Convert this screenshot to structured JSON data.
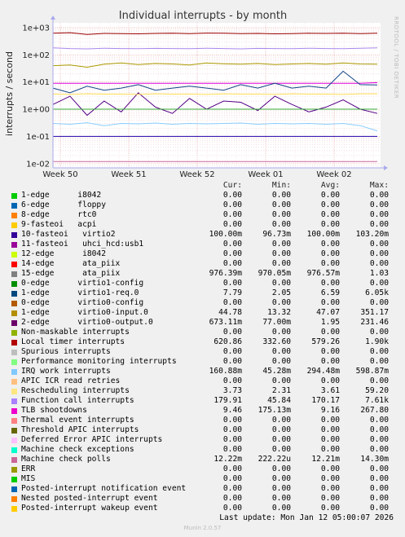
{
  "chart_data": {
    "type": "line",
    "title": "Individual interrupts - by month",
    "ylabel": "interrupts / second",
    "yscale": "log",
    "ylim": [
      0.007,
      1500
    ],
    "y_ticks": [
      "1e+03",
      "1e+02",
      "1e+01",
      "1e+00",
      "1e-01",
      "1e-02"
    ],
    "x_ticks": [
      "Week 50",
      "Week 51",
      "Week 52",
      "Week 01",
      "Week 02"
    ],
    "side_label": "RRDTOOL / TOBI OETIKER",
    "series": [
      {
        "name": "Local timer interrupts",
        "color": "#990000",
        "values": [
          620,
          650,
          560,
          610,
          600,
          590,
          610,
          620,
          600,
          630,
          620,
          600,
          610,
          590,
          600,
          620,
          610,
          620,
          600,
          620
        ]
      },
      {
        "name": "Function call interrupts",
        "color": "#aa88ee",
        "values": [
          180,
          170,
          165,
          175,
          170,
          168,
          172,
          170,
          168,
          175,
          170,
          165,
          172,
          170,
          168,
          175,
          170,
          168,
          175,
          180
        ]
      },
      {
        "name": "TLB shootdowns",
        "color": "#dd00dd",
        "values": [
          9,
          9,
          9,
          9,
          9,
          9,
          9,
          9,
          9,
          9,
          9,
          9,
          9,
          9,
          9,
          9,
          9,
          9,
          9,
          9.5
        ]
      },
      {
        "name": "1-edge virtio0-input.0",
        "color": "#aa9900",
        "values": [
          40,
          42,
          35,
          45,
          50,
          44,
          48,
          46,
          42,
          50,
          47,
          45,
          48,
          44,
          46,
          48,
          45,
          50,
          46,
          45
        ]
      },
      {
        "name": "2-edge virtio0-output.0",
        "color": "#550088",
        "values": [
          1.5,
          3,
          0.6,
          2,
          0.8,
          4,
          1.2,
          0.7,
          2.5,
          1.0,
          2.0,
          1.8,
          0.9,
          3,
          1.5,
          0.8,
          1.2,
          2.2,
          1.0,
          0.7
        ]
      },
      {
        "name": "1-edge virtio1-req.0",
        "color": "#114488",
        "values": [
          6,
          4,
          7,
          5,
          6,
          8,
          5,
          6,
          7,
          6,
          5,
          8,
          6,
          9,
          6,
          7,
          6,
          25,
          8,
          7.8
        ]
      },
      {
        "name": "IRQ work interrupts",
        "color": "#88ccff",
        "values": [
          0.3,
          0.28,
          0.32,
          0.25,
          0.3,
          0.29,
          0.31,
          0.28,
          0.3,
          0.29,
          0.3,
          0.31,
          0.28,
          0.3,
          0.29,
          0.3,
          0.28,
          0.3,
          0.25,
          0.16
        ]
      },
      {
        "name": "Machine check polls",
        "color": "#cc6699",
        "values": [
          0.012,
          0.012,
          0.012,
          0.012,
          0.012,
          0.012,
          0.012,
          0.012,
          0.012,
          0.012,
          0.012,
          0.012,
          0.012,
          0.012,
          0.012,
          0.012,
          0.012,
          0.012,
          0.012,
          0.012
        ]
      },
      {
        "name": "Rescheduling interrupts",
        "color": "#ffdd55",
        "values": [
          3.6,
          3.5,
          3.7,
          3.6,
          3.6,
          3.5,
          3.7,
          3.6,
          3.6,
          3.5,
          3.7,
          3.6,
          3.6,
          3.5,
          3.7,
          3.6,
          3.6,
          3.5,
          3.7,
          3.7
        ]
      },
      {
        "name": "10-fasteoi virtio2",
        "color": "#2200aa",
        "values": [
          0.1,
          0.1,
          0.1,
          0.1,
          0.1,
          0.1,
          0.1,
          0.1,
          0.1,
          0.1,
          0.1,
          0.1,
          0.1,
          0.1,
          0.1,
          0.1,
          0.1,
          0.1,
          0.1,
          0.1
        ]
      },
      {
        "name": "15-edge ata_piix",
        "color": "#33aa33",
        "values": [
          1,
          1,
          1,
          1,
          1,
          1,
          1,
          1,
          1,
          1,
          1,
          1,
          1,
          1,
          1,
          1,
          1,
          1,
          1,
          1
        ]
      }
    ]
  },
  "legend": {
    "headers": {
      "cur": "Cur:",
      "min": "Min:",
      "avg": "Avg:",
      "max": "Max:"
    },
    "rows": [
      {
        "name": "1-edge      i8042",
        "color": "#00cc00",
        "cur": "0.00",
        "min": "0.00",
        "avg": "0.00",
        "max": "0.00"
      },
      {
        "name": "6-edge      floppy",
        "color": "#0066b3",
        "cur": "0.00",
        "min": "0.00",
        "avg": "0.00",
        "max": "0.00"
      },
      {
        "name": "8-edge      rtc0",
        "color": "#ff8000",
        "cur": "0.00",
        "min": "0.00",
        "avg": "0.00",
        "max": "0.00"
      },
      {
        "name": "9-fasteoi   acpi",
        "color": "#ffcc00",
        "cur": "0.00",
        "min": "0.00",
        "avg": "0.00",
        "max": "0.00"
      },
      {
        "name": "10-fasteoi   virtio2",
        "color": "#330099",
        "cur": "100.00m",
        "min": "96.73m",
        "avg": "100.00m",
        "max": "103.20m"
      },
      {
        "name": "11-fasteoi   uhci_hcd:usb1",
        "color": "#990099",
        "cur": "0.00",
        "min": "0.00",
        "avg": "0.00",
        "max": "0.00"
      },
      {
        "name": "12-edge      i8042",
        "color": "#ccff00",
        "cur": "0.00",
        "min": "0.00",
        "avg": "0.00",
        "max": "0.00"
      },
      {
        "name": "14-edge      ata_piix",
        "color": "#ff0000",
        "cur": "0.00",
        "min": "0.00",
        "avg": "0.00",
        "max": "0.00"
      },
      {
        "name": "15-edge      ata_piix",
        "color": "#808080",
        "cur": "976.39m",
        "min": "970.05m",
        "avg": "976.57m",
        "max": "1.03"
      },
      {
        "name": "0-edge      virtio1-config",
        "color": "#008f00",
        "cur": "0.00",
        "min": "0.00",
        "avg": "0.00",
        "max": "0.00"
      },
      {
        "name": "1-edge      virtio1-req.0",
        "color": "#00487d",
        "cur": "7.79",
        "min": "2.05",
        "avg": "6.59",
        "max": "6.05k"
      },
      {
        "name": "0-edge      virtio0-config",
        "color": "#b35a00",
        "cur": "0.00",
        "min": "0.00",
        "avg": "0.00",
        "max": "0.00"
      },
      {
        "name": "1-edge      virtio0-input.0",
        "color": "#b38f00",
        "cur": "44.78",
        "min": "13.32",
        "avg": "47.07",
        "max": "351.17"
      },
      {
        "name": "2-edge      virtio0-output.0",
        "color": "#6b006b",
        "cur": "673.11m",
        "min": "77.00m",
        "avg": "1.95",
        "max": "231.46"
      },
      {
        "name": "Non-maskable interrupts",
        "color": "#8fb300",
        "cur": "0.00",
        "min": "0.00",
        "avg": "0.00",
        "max": "0.00"
      },
      {
        "name": "Local timer interrupts",
        "color": "#b30000",
        "cur": "620.86",
        "min": "332.60",
        "avg": "579.26",
        "max": "1.90k"
      },
      {
        "name": "Spurious interrupts",
        "color": "#bebebe",
        "cur": "0.00",
        "min": "0.00",
        "avg": "0.00",
        "max": "0.00"
      },
      {
        "name": "Performance monitoring interrupts",
        "color": "#80ff80",
        "cur": "0.00",
        "min": "0.00",
        "avg": "0.00",
        "max": "0.00"
      },
      {
        "name": "IRQ work interrupts",
        "color": "#80c9ff",
        "cur": "160.88m",
        "min": "45.28m",
        "avg": "294.48m",
        "max": "598.87m"
      },
      {
        "name": "APIC ICR read retries",
        "color": "#ffc080",
        "cur": "0.00",
        "min": "0.00",
        "avg": "0.00",
        "max": "0.00"
      },
      {
        "name": "Rescheduling interrupts",
        "color": "#ffe680",
        "cur": "3.73",
        "min": "2.31",
        "avg": "3.61",
        "max": "59.20"
      },
      {
        "name": "Function call interrupts",
        "color": "#aa80ff",
        "cur": "179.91",
        "min": "45.84",
        "avg": "170.17",
        "max": "7.61k"
      },
      {
        "name": "TLB shootdowns",
        "color": "#ee00cc",
        "cur": "9.46",
        "min": "175.13m",
        "avg": "9.16",
        "max": "267.80"
      },
      {
        "name": "Thermal event interrupts",
        "color": "#ff8080",
        "cur": "0.00",
        "min": "0.00",
        "avg": "0.00",
        "max": "0.00"
      },
      {
        "name": "Threshold APIC interrupts",
        "color": "#666600",
        "cur": "0.00",
        "min": "0.00",
        "avg": "0.00",
        "max": "0.00"
      },
      {
        "name": "Deferred Error APIC interrupts",
        "color": "#ffbfff",
        "cur": "0.00",
        "min": "0.00",
        "avg": "0.00",
        "max": "0.00"
      },
      {
        "name": "Machine check exceptions",
        "color": "#00ffcc",
        "cur": "0.00",
        "min": "0.00",
        "avg": "0.00",
        "max": "0.00"
      },
      {
        "name": "Machine check polls",
        "color": "#cc6699",
        "cur": "12.22m",
        "min": "222.22u",
        "avg": "12.21m",
        "max": "14.30m"
      },
      {
        "name": "ERR",
        "color": "#999900",
        "cur": "0.00",
        "min": "0.00",
        "avg": "0.00",
        "max": "0.00"
      },
      {
        "name": "MIS",
        "color": "#00cc00",
        "cur": "0.00",
        "min": "0.00",
        "avg": "0.00",
        "max": "0.00"
      },
      {
        "name": "Posted-interrupt notification event",
        "color": "#0066b3",
        "cur": "0.00",
        "min": "0.00",
        "avg": "0.00",
        "max": "0.00"
      },
      {
        "name": "Nested posted-interrupt event",
        "color": "#ff8000",
        "cur": "0.00",
        "min": "0.00",
        "avg": "0.00",
        "max": "0.00"
      },
      {
        "name": "Posted-interrupt wakeup event",
        "color": "#ffcc00",
        "cur": "0.00",
        "min": "0.00",
        "avg": "0.00",
        "max": "0.00"
      }
    ]
  },
  "footer": {
    "last_update": "Last update: Mon Jan 12 05:00:07 2026",
    "version": "Munin 2.0.57"
  }
}
